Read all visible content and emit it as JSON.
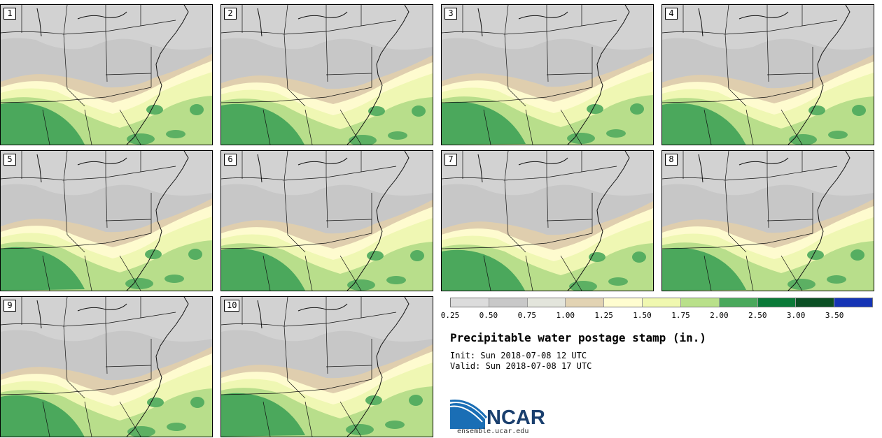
{
  "panels": [
    {
      "label": "1"
    },
    {
      "label": "2"
    },
    {
      "label": "3"
    },
    {
      "label": "4"
    },
    {
      "label": "5"
    },
    {
      "label": "6"
    },
    {
      "label": "7"
    },
    {
      "label": "8"
    },
    {
      "label": "9"
    },
    {
      "label": "10"
    }
  ],
  "colorbar": {
    "labels": [
      "0.25",
      "0.50",
      "0.75",
      "1.00",
      "1.25",
      "1.50",
      "1.75",
      "2.00",
      "2.50",
      "3.00",
      "3.50"
    ],
    "colors": [
      "#dcdcdc",
      "#c8c8c8",
      "#e3e5dc",
      "#e2d3b3",
      "#fffdd0",
      "#f0f8b0",
      "#b9e08a",
      "#4aa95c",
      "#0b7a38",
      "#0b4f24",
      "#1534b5"
    ]
  },
  "map_colors": {
    "land_low": "#c7c7c7",
    "land_mid": "#d8d8d8",
    "tan": "#dfceae",
    "pale_yellow": "#fefbcf",
    "light_green": "#eff7b3",
    "mid_green": "#b8de8b",
    "dark_green": "#4ba85c"
  },
  "title": "Precipitable water postage stamp (in.)",
  "init": "Init: Sun 2018-07-08 12 UTC",
  "valid": "Valid: Sun 2018-07-08 17 UTC",
  "logo": {
    "text": "NCAR",
    "url": "ensemble.ucar.edu"
  }
}
